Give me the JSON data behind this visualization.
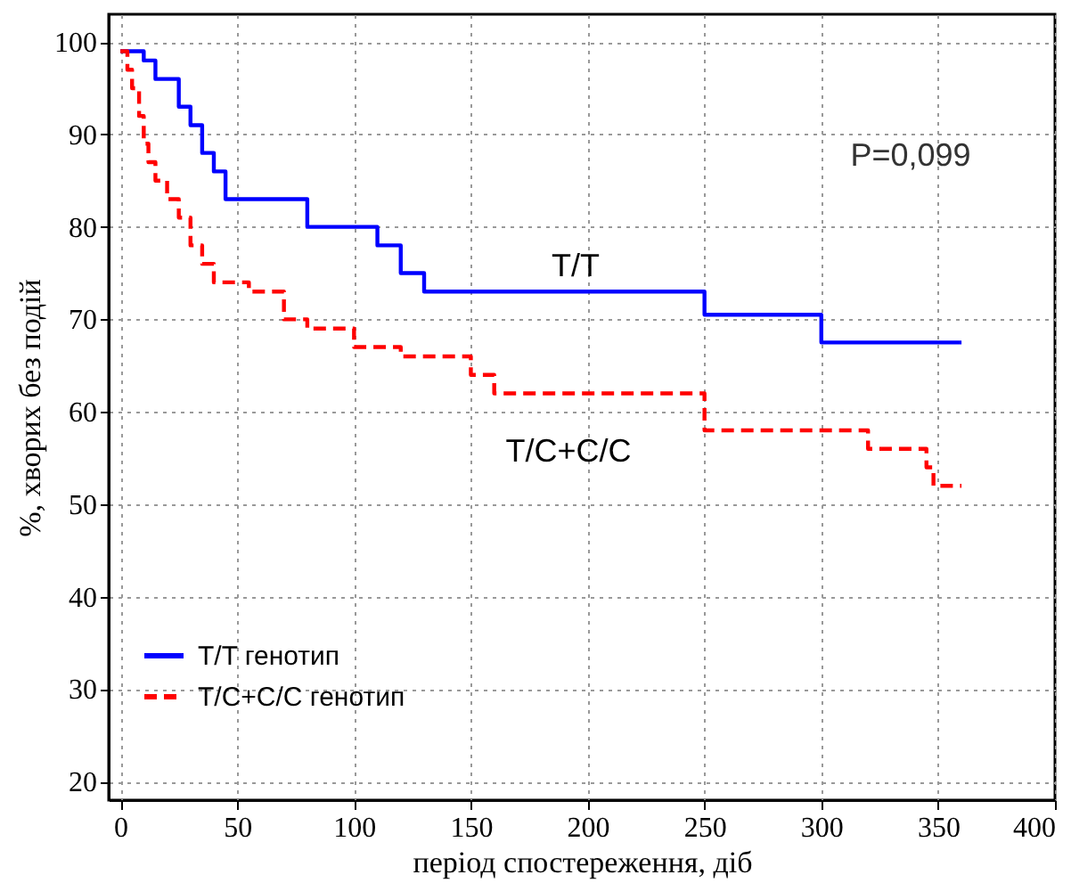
{
  "chart_data": {
    "type": "step",
    "xlabel": "період спостереження, діб",
    "ylabel": "%, хворих без подій",
    "xlim": [
      -5,
      400
    ],
    "ylim": [
      18,
      103
    ],
    "xticks": [
      0,
      50,
      100,
      150,
      200,
      250,
      300,
      350,
      400
    ],
    "yticks": [
      20,
      30,
      40,
      50,
      60,
      70,
      80,
      90,
      100
    ],
    "grid": true,
    "legend": "bottom left",
    "marker": "none",
    "series": [
      {
        "name": "T/T генотип",
        "color": "#0000ff",
        "line_style": "solid",
        "x": [
          0,
          10,
          15,
          25,
          30,
          35,
          40,
          45,
          80,
          110,
          120,
          130,
          250,
          300,
          360
        ],
        "values": [
          99,
          98,
          96,
          93,
          91,
          88,
          86,
          83,
          80,
          78,
          75,
          73,
          70.5,
          67.5,
          67.5
        ]
      },
      {
        "name": "T/C+C/C генотип",
        "color": "#ff0000",
        "line_style": "dashed",
        "x": [
          0,
          3,
          5,
          8,
          10,
          12,
          15,
          20,
          25,
          30,
          35,
          40,
          55,
          70,
          80,
          100,
          120,
          150,
          160,
          250,
          300,
          320,
          345,
          348,
          360
        ],
        "values": [
          99,
          97,
          95,
          92,
          89,
          87,
          85,
          83,
          81,
          78,
          76,
          74,
          73,
          70,
          69,
          67,
          66,
          64,
          62,
          58,
          58,
          56,
          54,
          52,
          52
        ]
      }
    ],
    "annotations": [
      "T/T",
      "T/C+C/C",
      "P=0,099"
    ]
  }
}
